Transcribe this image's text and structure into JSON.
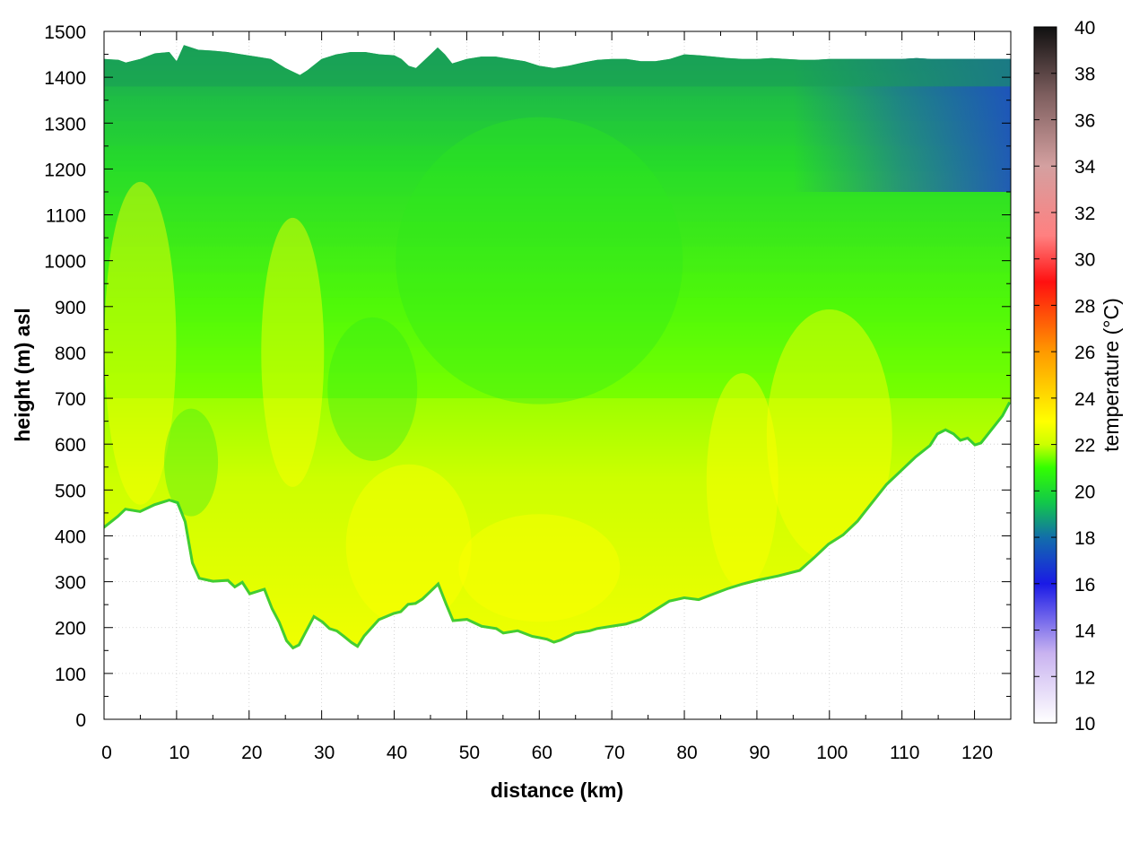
{
  "chart_data": {
    "type": "heatmap",
    "xlabel": "distance (km)",
    "ylabel": "height (m) asl",
    "colorbar_label": "temperature (°C)",
    "xlim": [
      0,
      125
    ],
    "ylim": [
      0,
      1500
    ],
    "x_ticks": [
      "0",
      "10",
      "20",
      "30",
      "40",
      "50",
      "60",
      "70",
      "80",
      "90",
      "100",
      "110",
      "120"
    ],
    "y_ticks": [
      "0",
      "100",
      "200",
      "300",
      "400",
      "500",
      "600",
      "700",
      "800",
      "900",
      "1000",
      "1100",
      "1200",
      "1300",
      "1400",
      "1500"
    ],
    "colorbar_range": [
      10,
      40
    ],
    "colorbar_ticks": [
      "10",
      "12",
      "14",
      "16",
      "18",
      "20",
      "22",
      "24",
      "26",
      "28",
      "30",
      "32",
      "34",
      "36",
      "38",
      "40"
    ],
    "grid": true,
    "colormap": [
      {
        "value": 10,
        "color": "#ffffff"
      },
      {
        "value": 13,
        "color": "#c9b3f0"
      },
      {
        "value": 16,
        "color": "#1a1ae6"
      },
      {
        "value": 18,
        "color": "#126eaa"
      },
      {
        "value": 19.5,
        "color": "#12c84a"
      },
      {
        "value": 21,
        "color": "#33ff00"
      },
      {
        "value": 22,
        "color": "#ccff00"
      },
      {
        "value": 23,
        "color": "#ffff00"
      },
      {
        "value": 26,
        "color": "#ff9900"
      },
      {
        "value": 29,
        "color": "#ff1010"
      },
      {
        "value": 31,
        "color": "#ff8080"
      },
      {
        "value": 34,
        "color": "#d4a0a0"
      },
      {
        "value": 37,
        "color": "#806060"
      },
      {
        "value": 40,
        "color": "#101010"
      }
    ],
    "ground_profile": {
      "x": [
        0,
        2,
        3,
        5,
        7,
        9,
        10,
        11,
        12,
        13,
        15,
        17,
        18,
        19,
        20,
        22,
        23,
        24,
        25,
        26,
        27,
        28,
        29,
        30,
        31,
        32,
        33,
        34,
        35,
        36,
        38,
        40,
        41,
        42,
        43,
        44,
        45,
        46,
        47,
        48,
        50,
        52,
        54,
        55,
        57,
        59,
        60,
        61,
        62,
        63,
        65,
        67,
        68,
        70,
        72,
        74,
        76,
        78,
        80,
        82,
        84,
        86,
        88,
        90,
        93,
        96,
        98,
        100,
        102,
        104,
        105,
        107,
        108,
        110,
        112,
        114,
        115,
        116,
        117,
        118,
        119,
        120,
        121,
        122,
        124,
        125
      ],
      "y": [
        415,
        440,
        455,
        450,
        465,
        475,
        470,
        430,
        340,
        305,
        298,
        300,
        285,
        295,
        270,
        280,
        240,
        210,
        170,
        152,
        160,
        190,
        220,
        210,
        195,
        190,
        178,
        165,
        155,
        180,
        215,
        228,
        232,
        248,
        250,
        260,
        275,
        290,
        250,
        212,
        215,
        200,
        195,
        185,
        190,
        178,
        175,
        172,
        165,
        170,
        185,
        190,
        195,
        200,
        205,
        215,
        235,
        255,
        262,
        258,
        270,
        282,
        292,
        300,
        310,
        322,
        350,
        380,
        400,
        430,
        450,
        490,
        510,
        540,
        570,
        595,
        620,
        628,
        620,
        605,
        610,
        595,
        600,
        620,
        660,
        690
      ]
    },
    "top_profile": {
      "x": [
        0,
        2,
        3,
        5,
        7,
        9,
        10,
        11,
        13,
        15,
        17,
        19,
        21,
        23,
        25,
        27,
        28,
        30,
        32,
        34,
        36,
        38,
        40,
        41,
        42,
        43,
        45,
        46,
        47,
        48,
        50,
        52,
        54,
        56,
        58,
        60,
        62,
        64,
        66,
        68,
        70,
        72,
        74,
        76,
        78,
        80,
        82,
        84,
        86,
        88,
        90,
        92,
        94,
        96,
        98,
        100,
        102,
        104,
        106,
        108,
        110,
        112,
        114,
        116,
        118,
        120,
        122,
        124,
        125
      ],
      "y": [
        1440,
        1438,
        1432,
        1440,
        1452,
        1455,
        1435,
        1470,
        1460,
        1458,
        1455,
        1450,
        1445,
        1440,
        1420,
        1405,
        1415,
        1440,
        1450,
        1455,
        1455,
        1450,
        1448,
        1440,
        1425,
        1420,
        1450,
        1465,
        1450,
        1430,
        1440,
        1445,
        1445,
        1440,
        1435,
        1425,
        1420,
        1425,
        1432,
        1438,
        1440,
        1440,
        1435,
        1435,
        1440,
        1450,
        1448,
        1445,
        1442,
        1440,
        1440,
        1442,
        1440,
        1438,
        1438,
        1440,
        1440,
        1440,
        1440,
        1440,
        1440,
        1442,
        1440,
        1440,
        1440,
        1440,
        1440,
        1440,
        1440
      ]
    },
    "upper_band_color": "#1a9a58",
    "high_altitude_cold_zone": {
      "x_range": [
        95,
        125
      ],
      "color": "#1e3cd6"
    },
    "warm_core_temperature": 23,
    "near_ground_temperature": 22.5,
    "mid_level_temperature": 21,
    "upper_level_temperature": 19.5
  }
}
